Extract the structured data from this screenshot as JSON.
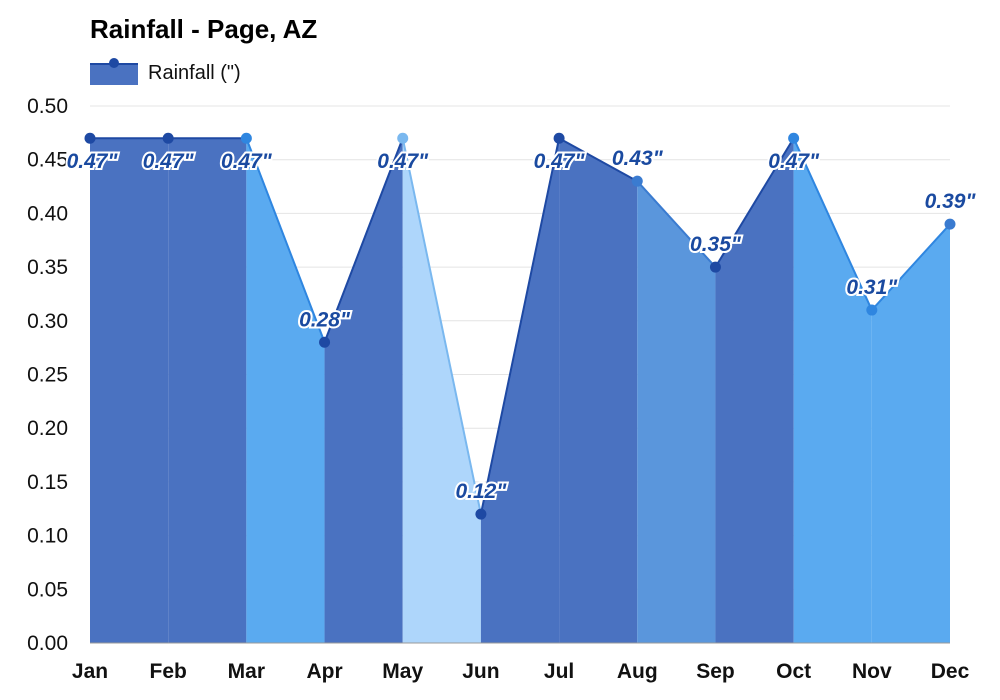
{
  "title": "Rainfall - Page, AZ",
  "legend": {
    "label": "Rainfall (\")"
  },
  "chart_data": {
    "type": "area",
    "title": "Rainfall - Page, AZ",
    "xlabel": "",
    "ylabel": "",
    "categories": [
      "Jan",
      "Feb",
      "Mar",
      "Apr",
      "May",
      "Jun",
      "Jul",
      "Aug",
      "Sep",
      "Oct",
      "Nov",
      "Dec"
    ],
    "series": [
      {
        "name": "Rainfall (\")",
        "values": [
          0.47,
          0.47,
          0.47,
          0.28,
          0.47,
          0.12,
          0.47,
          0.43,
          0.35,
          0.47,
          0.31,
          0.39
        ]
      }
    ],
    "data_labels": [
      "0.47\"",
      "0.47\"",
      "0.47\"",
      "0.28\"",
      "0.47\"",
      "0.12\"",
      "0.47\"",
      "0.43\"",
      "0.35\"",
      "0.47\"",
      "0.31\"",
      "0.39\""
    ],
    "y_ticks": [
      "0.00",
      "0.05",
      "0.10",
      "0.15",
      "0.20",
      "0.25",
      "0.30",
      "0.35",
      "0.40",
      "0.45",
      "0.50"
    ],
    "ylim": [
      0,
      0.5
    ],
    "grid": true,
    "legend_position": "top-left",
    "segment_colors": [
      "#4a72c1",
      "#4a72c1",
      "#5aaaf0",
      "#4a72c1",
      "#aed6fb",
      "#4a72c1",
      "#4a72c1",
      "#5a96dc",
      "#4a72c1",
      "#5aaaf0",
      "#5aaaf0",
      "#5a8ed6"
    ],
    "line_colors": [
      "#1e49a3",
      "#1e49a3",
      "#2f86e0",
      "#1e49a3",
      "#7ab8ef",
      "#1e49a3",
      "#1e49a3",
      "#3a7bd0",
      "#1e49a3",
      "#2f86e0",
      "#2f86e0",
      "#3a7bd0"
    ]
  }
}
